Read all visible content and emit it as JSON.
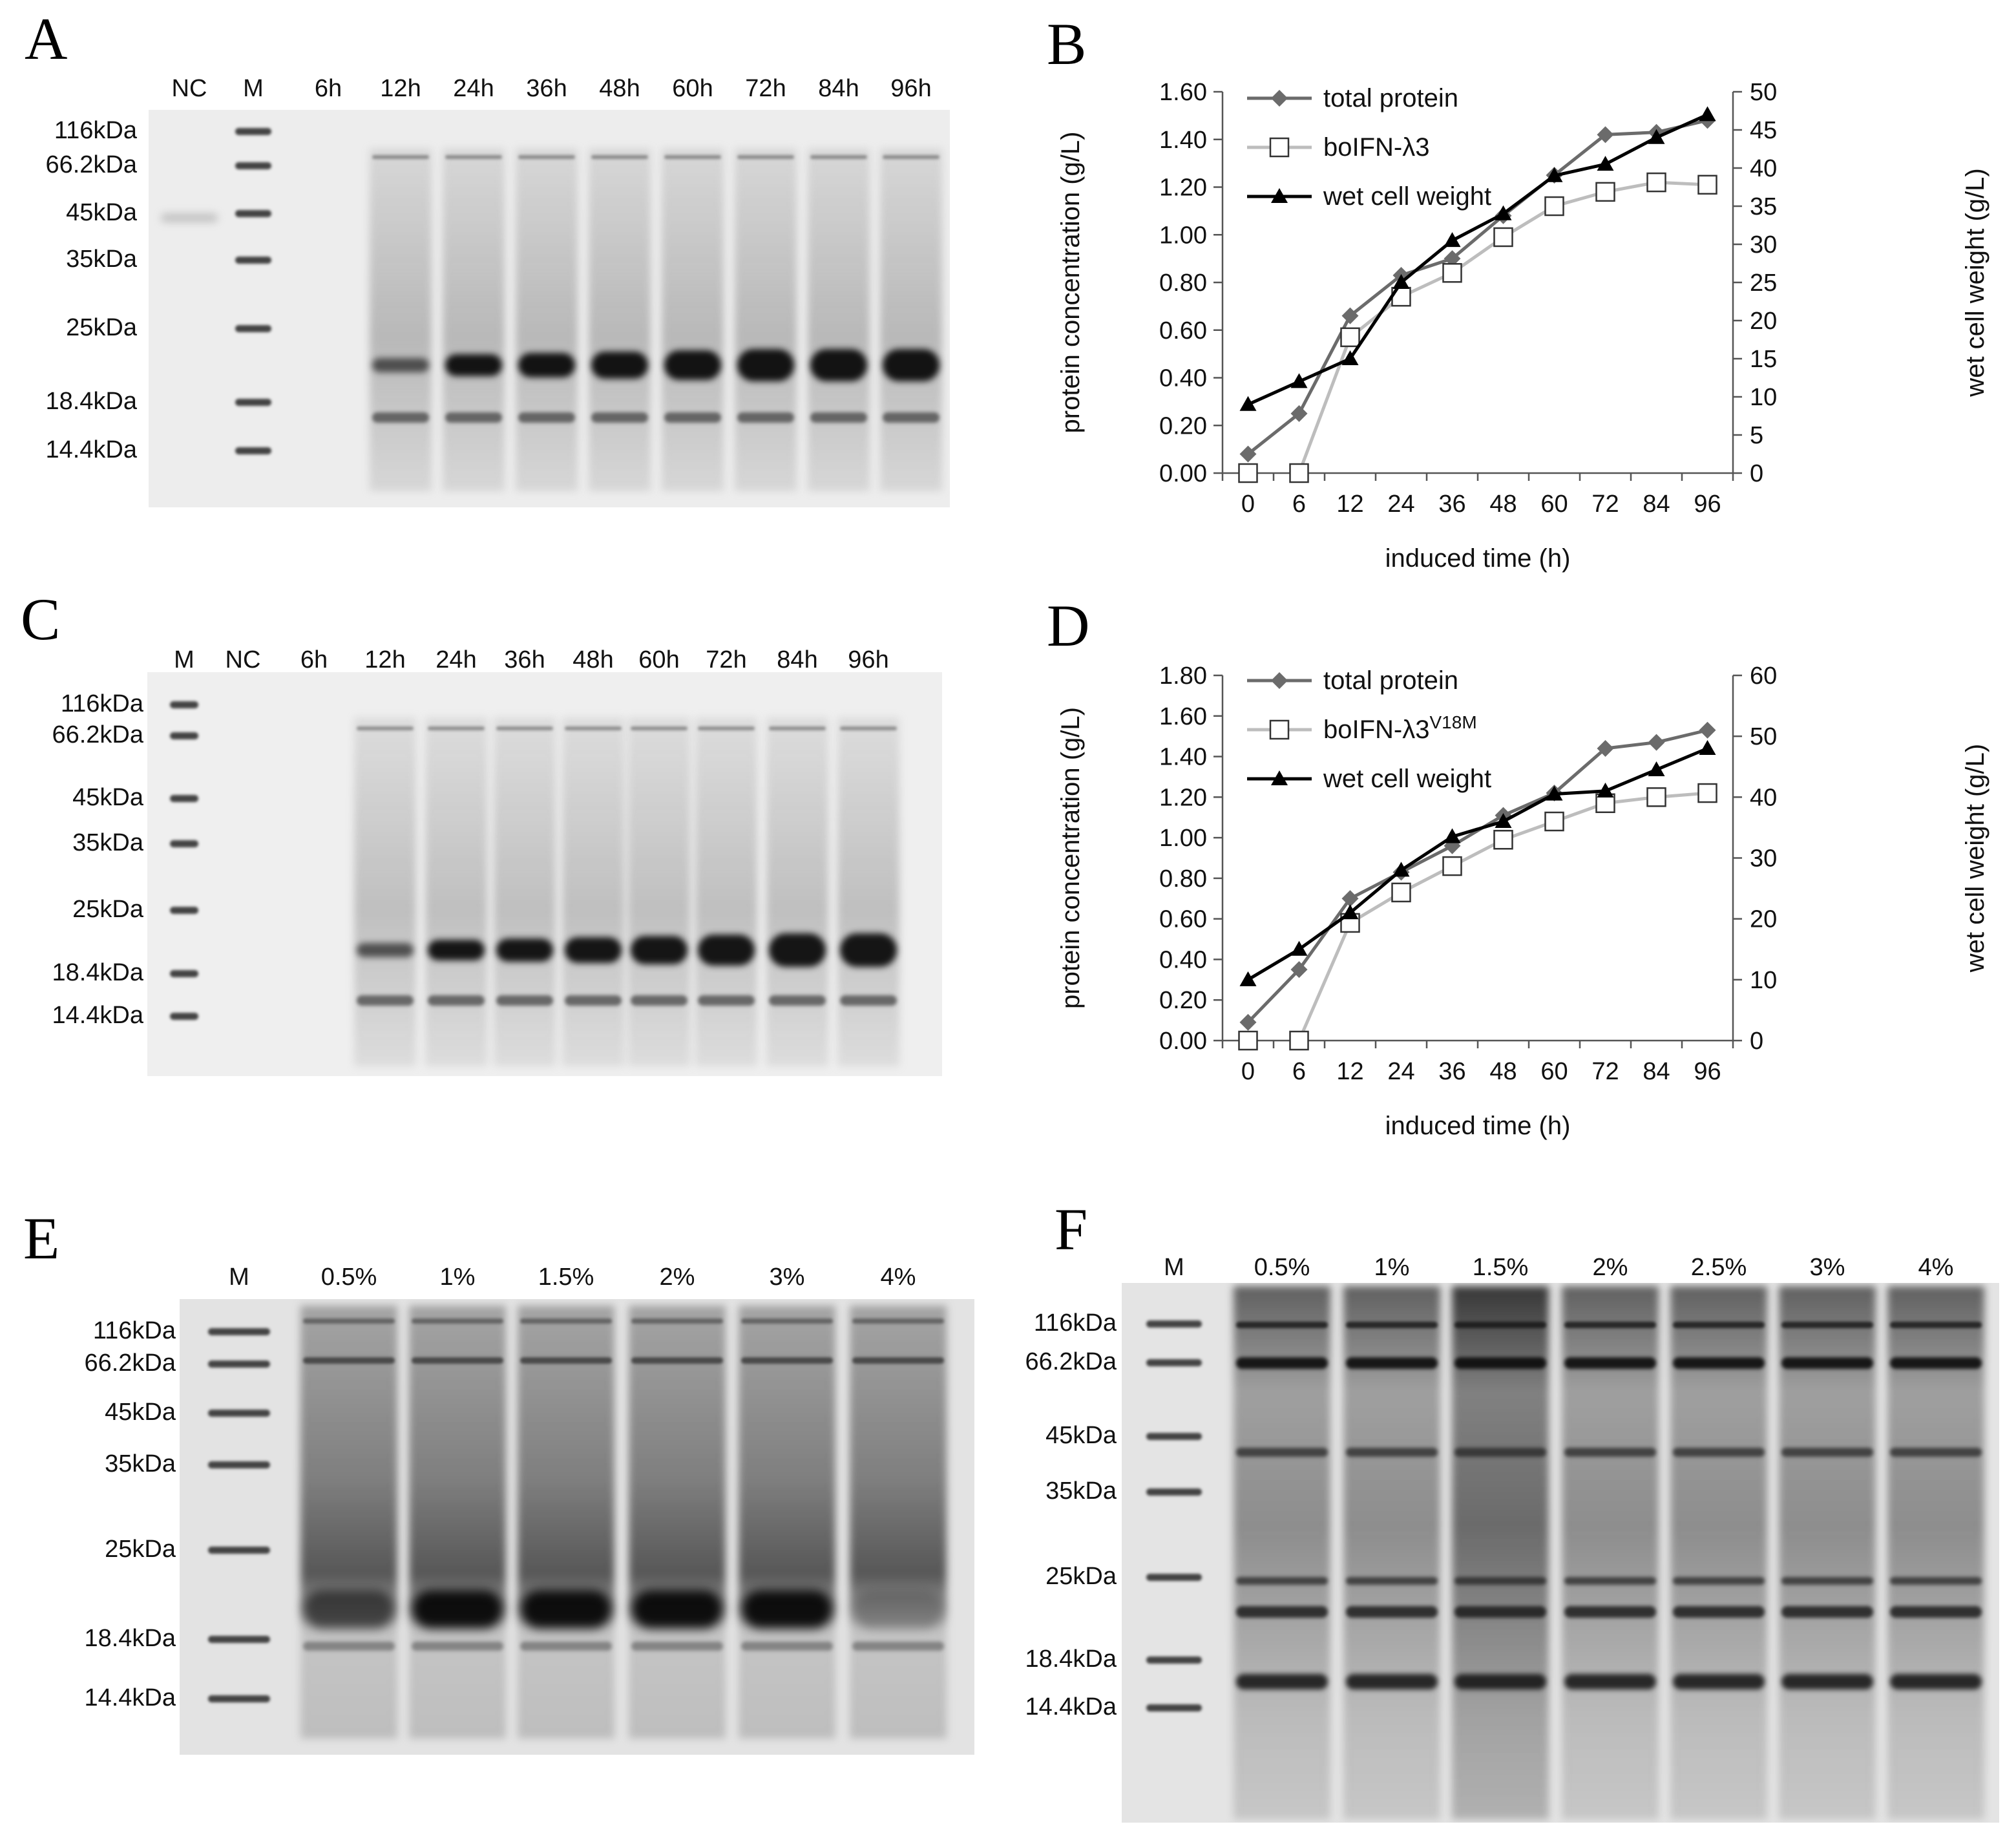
{
  "panels": {
    "A": {
      "letter": "A",
      "lanes": [
        "NC",
        "M",
        "6h",
        "12h",
        "24h",
        "36h",
        "48h",
        "60h",
        "72h",
        "84h",
        "96h"
      ],
      "markers": [
        "116kDa",
        "66.2kDa",
        "45kDa",
        "35kDa",
        "25kDa",
        "18.4kDa",
        "14.4kDa"
      ]
    },
    "C": {
      "letter": "C",
      "lanes": [
        "M",
        "NC",
        "6h",
        "12h",
        "24h",
        "36h",
        "48h",
        "60h",
        "72h",
        "84h",
        "96h"
      ],
      "markers": [
        "116kDa",
        "66.2kDa",
        "45kDa",
        "35kDa",
        "25kDa",
        "18.4kDa",
        "14.4kDa"
      ]
    },
    "E": {
      "letter": "E",
      "lanes": [
        "M",
        "0.5%",
        "1%",
        "1.5%",
        "2%",
        "3%",
        "4%"
      ],
      "markers": [
        "116kDa",
        "66.2kDa",
        "45kDa",
        "35kDa",
        "25kDa",
        "18.4kDa",
        "14.4kDa"
      ]
    },
    "F": {
      "letter": "F",
      "lanes": [
        "M",
        "0.5%",
        "1%",
        "1.5%",
        "2%",
        "2.5%",
        "3%",
        "4%"
      ],
      "markers": [
        "116kDa",
        "66.2kDa",
        "45kDa",
        "35kDa",
        "25kDa",
        "18.4kDa",
        "14.4kDa"
      ]
    }
  },
  "chart_data": [
    {
      "panel": "B",
      "type": "line",
      "categories": [
        "0",
        "6",
        "12",
        "24",
        "36",
        "48",
        "60",
        "72",
        "84",
        "96"
      ],
      "xlabel": "induced time (h)",
      "ylabel": "protein concentration (g/L)",
      "y2label": "wet cell weight (g/L)",
      "ylim": [
        0,
        1.6
      ],
      "yticks": [
        "0.00",
        "0.20",
        "0.40",
        "0.60",
        "0.80",
        "1.00",
        "1.20",
        "1.40",
        "1.60"
      ],
      "y2lim": [
        0,
        50
      ],
      "y2ticks": [
        "0",
        "5",
        "10",
        "15",
        "20",
        "25",
        "30",
        "35",
        "40",
        "45",
        "50"
      ],
      "legend_position": "top-left",
      "series": [
        {
          "name": "total protein",
          "axis": "left",
          "marker": "diamond",
          "color": "#6b6b6b",
          "values": [
            0.08,
            0.25,
            0.66,
            0.83,
            0.9,
            1.08,
            1.25,
            1.42,
            1.43,
            1.48
          ]
        },
        {
          "name": "boIFN-λ3",
          "axis": "left",
          "marker": "square-open",
          "color": "#bdbdbd",
          "values": [
            0.0,
            0.0,
            0.57,
            0.74,
            0.84,
            0.99,
            1.12,
            1.18,
            1.22,
            1.21
          ]
        },
        {
          "name": "wet cell weight",
          "axis": "right",
          "marker": "triangle",
          "color": "#000000",
          "values": [
            9,
            12,
            15,
            25,
            30.5,
            34,
            39,
            40.5,
            44,
            47
          ]
        }
      ]
    },
    {
      "panel": "D",
      "type": "line",
      "categories": [
        "0",
        "6",
        "12",
        "24",
        "36",
        "48",
        "60",
        "72",
        "84",
        "96"
      ],
      "xlabel": "induced time (h)",
      "ylabel": "protein concentration (g/L)",
      "y2label": "wet cell weight (g/L)",
      "ylim": [
        0,
        1.8
      ],
      "yticks": [
        "0.00",
        "0.20",
        "0.40",
        "0.60",
        "0.80",
        "1.00",
        "1.20",
        "1.40",
        "1.60",
        "1.80"
      ],
      "y2lim": [
        0,
        60
      ],
      "y2ticks": [
        "0",
        "10",
        "20",
        "30",
        "40",
        "50",
        "60"
      ],
      "legend_position": "top-left",
      "series": [
        {
          "name": "total protein",
          "axis": "left",
          "marker": "diamond",
          "color": "#6b6b6b",
          "values": [
            0.09,
            0.35,
            0.7,
            0.83,
            0.96,
            1.11,
            1.22,
            1.44,
            1.47,
            1.53
          ]
        },
        {
          "name": "boIFN-λ3",
          "name_sup": "V18M",
          "axis": "left",
          "marker": "square-open",
          "color": "#bdbdbd",
          "values": [
            0.0,
            0.0,
            0.58,
            0.73,
            0.86,
            0.99,
            1.08,
            1.17,
            1.2,
            1.22
          ]
        },
        {
          "name": "wet cell weight",
          "axis": "right",
          "marker": "triangle",
          "color": "#000000",
          "values": [
            10,
            15,
            21,
            28,
            33.5,
            36,
            40.5,
            41,
            44.5,
            48
          ]
        }
      ]
    }
  ]
}
